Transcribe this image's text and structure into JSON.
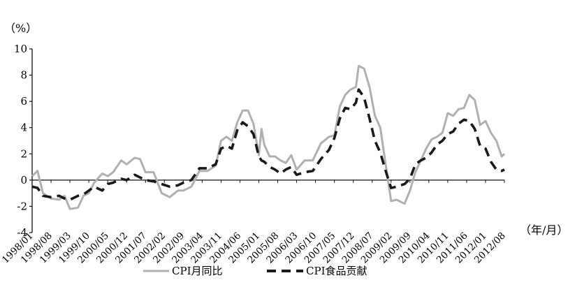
{
  "chart_data": {
    "type": "line",
    "title": "",
    "y_unit_label": "（%）",
    "x_unit_label": "（年/月）",
    "ylim": [
      -4,
      10
    ],
    "yticks": [
      -4,
      -2,
      0,
      2,
      4,
      6,
      8,
      10
    ],
    "x_tick_labels": [
      "1998/01",
      "1998/08",
      "1999/03",
      "1999/10",
      "2000/05",
      "2000/12",
      "2001/07",
      "2002/02",
      "2002/09",
      "2003/04",
      "2003/11",
      "2004/06",
      "2005/01",
      "2005/08",
      "2006/03",
      "2006/10",
      "2007/05",
      "2007/12",
      "2008/07",
      "2009/02",
      "2009/09",
      "2010/04",
      "2010/11",
      "2011/06",
      "2012/01",
      "2012/08"
    ],
    "legend_placement": "bottom-center",
    "grid": false,
    "series": [
      {
        "name": "CPI月同比",
        "color": "#b0b0b0",
        "style": "solid",
        "x": [
          "1998/01",
          "1998/03",
          "1998/05",
          "1998/08",
          "1998/11",
          "1999/01",
          "1999/03",
          "1999/06",
          "1999/08",
          "1999/10",
          "1999/12",
          "2000/03",
          "2000/05",
          "2000/07",
          "2000/10",
          "2000/12",
          "2001/03",
          "2001/05",
          "2001/07",
          "2001/10",
          "2002/01",
          "2002/04",
          "2002/07",
          "2002/09",
          "2002/12",
          "2003/03",
          "2003/06",
          "2003/09",
          "2003/11",
          "2004/01",
          "2004/03",
          "2004/05",
          "2004/07",
          "2004/09",
          "2004/11",
          "2005/01",
          "2005/02",
          "2005/03",
          "2005/05",
          "2005/07",
          "2005/09",
          "2005/11",
          "2006/01",
          "2006/03",
          "2006/06",
          "2006/09",
          "2006/12",
          "2007/03",
          "2007/05",
          "2007/07",
          "2007/09",
          "2007/11",
          "2008/01",
          "2008/02",
          "2008/04",
          "2008/06",
          "2008/08",
          "2008/10",
          "2008/12",
          "2009/02",
          "2009/04",
          "2009/07",
          "2009/09",
          "2009/11",
          "2010/01",
          "2010/03",
          "2010/05",
          "2010/07",
          "2010/09",
          "2010/11",
          "2011/01",
          "2011/03",
          "2011/05",
          "2011/07",
          "2011/09",
          "2011/11",
          "2012/01",
          "2012/03",
          "2012/05",
          "2012/07",
          "2012/08"
        ],
        "y": [
          0.3,
          0.7,
          -1.0,
          -1.4,
          -1.5,
          -1.2,
          -2.2,
          -2.1,
          -1.2,
          -1.0,
          -0.2,
          0.5,
          0.3,
          0.6,
          1.5,
          1.2,
          1.7,
          1.6,
          0.6,
          0.6,
          -1.0,
          -1.3,
          -0.8,
          -0.8,
          -0.5,
          0.7,
          0.7,
          1.1,
          3.0,
          3.3,
          3.0,
          4.4,
          5.3,
          5.3,
          4.3,
          1.9,
          3.9,
          2.7,
          1.8,
          1.8,
          1.5,
          1.3,
          1.9,
          0.8,
          1.5,
          1.5,
          2.8,
          3.3,
          3.4,
          5.6,
          6.5,
          6.9,
          7.1,
          8.7,
          8.5,
          7.1,
          4.9,
          4.0,
          1.2,
          -1.6,
          -1.5,
          -1.8,
          -0.8,
          0.6,
          1.5,
          2.4,
          3.1,
          3.3,
          3.6,
          5.1,
          4.9,
          5.4,
          5.5,
          6.5,
          6.1,
          4.2,
          4.5,
          3.6,
          3.0,
          1.8,
          2.0
        ]
      },
      {
        "name": "CPI食品贡献",
        "color": "#1a1a1a",
        "style": "dashed",
        "x": [
          "1998/01",
          "1998/03",
          "1998/05",
          "1998/08",
          "1998/11",
          "1999/01",
          "1999/03",
          "1999/06",
          "1999/08",
          "1999/10",
          "1999/12",
          "2000/03",
          "2000/05",
          "2000/07",
          "2000/10",
          "2000/12",
          "2001/03",
          "2001/05",
          "2001/07",
          "2001/10",
          "2002/01",
          "2002/04",
          "2002/07",
          "2002/09",
          "2002/12",
          "2003/03",
          "2003/06",
          "2003/09",
          "2003/11",
          "2004/01",
          "2004/03",
          "2004/05",
          "2004/07",
          "2004/09",
          "2004/11",
          "2005/01",
          "2005/02",
          "2005/03",
          "2005/05",
          "2005/07",
          "2005/09",
          "2005/11",
          "2006/01",
          "2006/03",
          "2006/06",
          "2006/09",
          "2006/12",
          "2007/03",
          "2007/05",
          "2007/07",
          "2007/09",
          "2007/11",
          "2008/01",
          "2008/02",
          "2008/04",
          "2008/06",
          "2008/08",
          "2008/10",
          "2008/12",
          "2009/02",
          "2009/04",
          "2009/07",
          "2009/09",
          "2009/11",
          "2010/01",
          "2010/03",
          "2010/05",
          "2010/07",
          "2010/09",
          "2010/11",
          "2011/01",
          "2011/03",
          "2011/05",
          "2011/07",
          "2011/09",
          "2011/11",
          "2012/01",
          "2012/03",
          "2012/05",
          "2012/07",
          "2012/08"
        ],
        "y": [
          -0.5,
          -0.6,
          -1.2,
          -1.3,
          -1.2,
          -1.4,
          -1.5,
          -1.2,
          -1.1,
          -0.8,
          -0.5,
          -0.8,
          -0.3,
          -0.2,
          0.1,
          0.0,
          0.4,
          0.2,
          0.0,
          -0.1,
          -0.3,
          -0.5,
          -0.4,
          -0.2,
          0.0,
          0.9,
          0.9,
          1.2,
          2.4,
          2.6,
          2.4,
          3.8,
          4.4,
          4.1,
          3.5,
          1.8,
          1.5,
          1.4,
          1.0,
          0.8,
          0.5,
          0.8,
          1.0,
          0.4,
          0.6,
          0.7,
          1.6,
          2.3,
          3.2,
          4.7,
          5.5,
          5.4,
          5.9,
          6.9,
          6.3,
          4.7,
          3.0,
          2.1,
          0.7,
          -0.6,
          -0.5,
          -0.3,
          0.1,
          1.2,
          1.5,
          1.7,
          2.1,
          2.7,
          3.0,
          3.5,
          3.7,
          4.3,
          4.6,
          4.5,
          3.9,
          2.6,
          2.4,
          1.4,
          0.8,
          0.7,
          0.8
        ]
      }
    ]
  }
}
